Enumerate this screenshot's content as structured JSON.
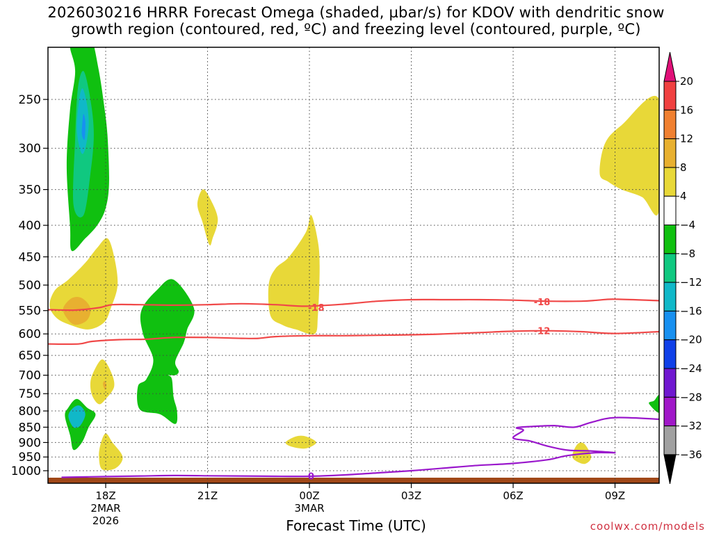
{
  "title_line1": "2026030216 HRRR Forecast Omega (shaded, µbar/s) for KDOV with dendritic snow",
  "title_line2": "growth region (contoured, red, ºC) and freezing level (contoured, purple, ºC)",
  "credit": "coolwx.com/models",
  "chart_data": {
    "type": "heatmap",
    "xlabel": "Forecast Time (UTC)",
    "ylabel": "",
    "y_axis": {
      "scale": "pressure",
      "reversed": true,
      "range": [
        1050,
        200
      ],
      "ticks": [
        250,
        300,
        350,
        400,
        450,
        500,
        550,
        600,
        650,
        700,
        750,
        800,
        850,
        900,
        950,
        1000
      ]
    },
    "x_axis": {
      "range_hours": [
        -1.7,
        16.3
      ],
      "ticks": [
        {
          "hour": 0,
          "label": "18Z",
          "sub1": "2MAR",
          "sub2": "2026"
        },
        {
          "hour": 3,
          "label": "21Z",
          "sub1": "",
          "sub2": ""
        },
        {
          "hour": 6,
          "label": "00Z",
          "sub1": "3MAR",
          "sub2": ""
        },
        {
          "hour": 9,
          "label": "03Z",
          "sub1": "",
          "sub2": ""
        },
        {
          "hour": 12,
          "label": "06Z",
          "sub1": "",
          "sub2": ""
        },
        {
          "hour": 15,
          "label": "09Z",
          "sub1": "",
          "sub2": ""
        }
      ]
    },
    "grid": true,
    "colorbar": {
      "levels": [
        20,
        16,
        12,
        8,
        4,
        -4,
        -8,
        -12,
        -16,
        -20,
        -24,
        -28,
        -32,
        -36
      ],
      "colors": [
        "#f04040",
        "#f08030",
        "#e8b030",
        "#e8d838",
        "#ffffff",
        "#10c010",
        "#10c880",
        "#10b8c8",
        "#1890f0",
        "#1040e8",
        "#7018d0",
        "#a018c8",
        "#a0a0a0"
      ],
      "top_color": "#e01078",
      "bottom_color": "#000000"
    },
    "shaded_regions": [
      {
        "value_range": [
          -12,
          -8
        ],
        "color": "#10c010",
        "points": [
          [
            -1.0,
            440
          ],
          [
            -1.05,
            400
          ],
          [
            -1.15,
            320
          ],
          [
            -1.05,
            260
          ],
          [
            -0.9,
            225
          ],
          [
            -1.05,
            205
          ],
          [
            -0.9,
            195
          ],
          [
            -0.75,
            190
          ],
          [
            -0.45,
            195
          ],
          [
            -0.2,
            225
          ],
          [
            -0.05,
            255
          ],
          [
            0.05,
            285
          ],
          [
            0.1,
            340
          ],
          [
            0.0,
            375
          ],
          [
            -0.25,
            400
          ],
          [
            -0.6,
            420
          ]
        ]
      },
      {
        "value_range": [
          -16,
          -12
        ],
        "color": "#10c880",
        "points": [
          [
            -0.95,
            370
          ],
          [
            -0.9,
            290
          ],
          [
            -0.82,
            240
          ],
          [
            -0.65,
            225
          ],
          [
            -0.45,
            250
          ],
          [
            -0.35,
            285
          ],
          [
            -0.45,
            330
          ],
          [
            -0.65,
            385
          ]
        ]
      },
      {
        "value_range": [
          -20,
          -16
        ],
        "color": "#10b8c8",
        "points": [
          [
            -0.85,
            280
          ],
          [
            -0.78,
            250
          ],
          [
            -0.68,
            240
          ],
          [
            -0.55,
            255
          ],
          [
            -0.5,
            275
          ],
          [
            -0.6,
            300
          ],
          [
            -0.72,
            305
          ]
        ]
      },
      {
        "value_range": [
          -24,
          -20
        ],
        "color": "#1890f0",
        "points": [
          [
            -0.7,
            285
          ],
          [
            -0.68,
            270
          ],
          [
            -0.65,
            264
          ],
          [
            -0.6,
            272
          ],
          [
            -0.62,
            290
          ]
        ]
      },
      {
        "value_range": [
          4,
          8
        ],
        "color": "#e8d838",
        "points": [
          [
            -1.65,
            540
          ],
          [
            -1.5,
            510
          ],
          [
            -1.1,
            490
          ],
          [
            -0.6,
            460
          ],
          [
            -0.25,
            435
          ],
          [
            0.05,
            420
          ],
          [
            0.25,
            450
          ],
          [
            0.35,
            500
          ],
          [
            0.15,
            545
          ],
          [
            -0.05,
            575
          ],
          [
            -0.5,
            590
          ],
          [
            -1.05,
            580
          ],
          [
            -1.45,
            565
          ]
        ]
      },
      {
        "value_range": [
          8,
          12
        ],
        "color": "#e8b030",
        "points": [
          [
            -1.25,
            545
          ],
          [
            -1.0,
            525
          ],
          [
            -0.7,
            525
          ],
          [
            -0.45,
            545
          ],
          [
            -0.55,
            570
          ],
          [
            -0.9,
            580
          ],
          [
            -1.15,
            565
          ]
        ]
      },
      {
        "value_range": [
          4,
          8
        ],
        "color": "#e8d838",
        "points": [
          [
            -0.45,
            720
          ],
          [
            -0.35,
            690
          ],
          [
            -0.1,
            660
          ],
          [
            0.15,
            690
          ],
          [
            0.25,
            730
          ],
          [
            0.0,
            765
          ],
          [
            -0.2,
            780
          ],
          [
            -0.4,
            755
          ]
        ]
      },
      {
        "value_range": [
          8,
          12
        ],
        "color": "#e8b030",
        "points": [
          [
            -0.08,
            725
          ],
          [
            -0.04,
            715
          ],
          [
            0.02,
            725
          ],
          [
            -0.01,
            740
          ]
        ]
      },
      {
        "value_range": [
          4,
          8
        ],
        "color": "#e8d838",
        "points": [
          [
            -0.2,
            950
          ],
          [
            -0.15,
            905
          ],
          [
            0.0,
            870
          ],
          [
            0.2,
            900
          ],
          [
            0.5,
            950
          ],
          [
            0.3,
            990
          ],
          [
            -0.1,
            995
          ]
        ]
      },
      {
        "value_range": [
          4,
          8
        ],
        "color": "#e8d838",
        "points": [
          [
            2.7,
            370
          ],
          [
            2.85,
            350
          ],
          [
            3.05,
            360
          ],
          [
            3.3,
            390
          ],
          [
            3.15,
            420
          ],
          [
            3.05,
            430
          ],
          [
            2.85,
            395
          ]
        ]
      },
      {
        "value_range": [
          4,
          8
        ],
        "color": "#e8d838",
        "points": [
          [
            4.8,
            500
          ],
          [
            5.0,
            470
          ],
          [
            5.4,
            450
          ],
          [
            5.9,
            410
          ],
          [
            6.05,
            385
          ],
          [
            6.25,
            425
          ],
          [
            6.3,
            470
          ],
          [
            6.25,
            560
          ],
          [
            6.15,
            600
          ],
          [
            5.6,
            590
          ],
          [
            5.2,
            580
          ],
          [
            4.85,
            560
          ]
        ]
      },
      {
        "value_range": [
          4,
          8
        ],
        "color": "#e8d838",
        "points": [
          [
            5.3,
            900
          ],
          [
            5.6,
            880
          ],
          [
            5.9,
            880
          ],
          [
            6.2,
            900
          ],
          [
            5.9,
            920
          ],
          [
            5.5,
            915
          ]
        ]
      },
      {
        "value_range": [
          -12,
          -8
        ],
        "color": "#10c010",
        "points": [
          [
            1.05,
            550
          ],
          [
            1.5,
            510
          ],
          [
            2.0,
            490
          ],
          [
            2.6,
            545
          ],
          [
            2.4,
            590
          ],
          [
            2.3,
            620
          ],
          [
            2.05,
            665
          ],
          [
            2.15,
            690
          ],
          [
            2.05,
            700
          ],
          [
            1.85,
            700
          ],
          [
            1.95,
            710
          ],
          [
            2.0,
            760
          ],
          [
            2.1,
            800
          ],
          [
            2.05,
            840
          ],
          [
            1.6,
            810
          ],
          [
            1.0,
            795
          ],
          [
            0.95,
            730
          ],
          [
            1.2,
            710
          ],
          [
            1.4,
            660
          ],
          [
            1.1,
            600
          ]
        ]
      },
      {
        "value_range": [
          -12,
          -8
        ],
        "color": "#10c010",
        "points": [
          [
            -1.2,
            815
          ],
          [
            -1.1,
            790
          ],
          [
            -0.85,
            765
          ],
          [
            -0.55,
            790
          ],
          [
            -0.3,
            810
          ],
          [
            -0.5,
            850
          ],
          [
            -0.7,
            900
          ],
          [
            -0.95,
            925
          ],
          [
            -1.05,
            875
          ]
        ]
      },
      {
        "value_range": [
          -16,
          -12
        ],
        "color": "#10b8c8",
        "points": [
          [
            -1.1,
            815
          ],
          [
            -0.95,
            790
          ],
          [
            -0.75,
            785
          ],
          [
            -0.6,
            810
          ],
          [
            -0.75,
            845
          ],
          [
            -0.95,
            850
          ]
        ]
      },
      {
        "value_range": [
          4,
          8
        ],
        "color": "#e8d838",
        "points": [
          [
            14.55,
            330
          ],
          [
            14.7,
            295
          ],
          [
            15.2,
            275
          ],
          [
            16.3,
            250
          ],
          [
            16.3,
            378
          ],
          [
            15.8,
            360
          ],
          [
            15.2,
            350
          ],
          [
            14.8,
            340
          ]
        ]
      },
      {
        "value_range": [
          4,
          8
        ],
        "color": "#e8d838",
        "points": [
          [
            13.75,
            940
          ],
          [
            13.9,
            905
          ],
          [
            14.1,
            905
          ],
          [
            14.3,
            950
          ],
          [
            14.1,
            975
          ],
          [
            13.8,
            960
          ]
        ]
      },
      {
        "value_range": [
          -12,
          -8
        ],
        "color": "#10c010",
        "points": [
          [
            16.3,
            755
          ],
          [
            16.15,
            770
          ],
          [
            16.0,
            778
          ],
          [
            16.3,
            805
          ]
        ]
      }
    ],
    "contours": [
      {
        "level": -18,
        "label": "-18",
        "color": "#f04848",
        "label_positions": [
          [
            6.2,
            543
          ],
          [
            12.85,
            532
          ]
        ],
        "points": [
          [
            -1.7,
            548
          ],
          [
            -0.9,
            549
          ],
          [
            -0.2,
            544
          ],
          [
            0.2,
            538
          ],
          [
            1.0,
            538
          ],
          [
            2.0,
            539
          ],
          [
            3.0,
            538
          ],
          [
            4.0,
            536
          ],
          [
            5.0,
            538
          ],
          [
            5.9,
            541
          ],
          [
            7.0,
            537
          ],
          [
            8.0,
            531
          ],
          [
            9.0,
            528
          ],
          [
            10.0,
            528
          ],
          [
            11.0,
            528
          ],
          [
            12.0,
            529
          ],
          [
            13.0,
            531
          ],
          [
            14.0,
            531
          ],
          [
            14.5,
            529
          ],
          [
            15.0,
            527
          ],
          [
            16.3,
            530
          ]
        ]
      },
      {
        "level": -12,
        "label": "-12",
        "color": "#f04848",
        "label_positions": [
          [
            12.85,
            593
          ]
        ],
        "points": [
          [
            -1.7,
            623
          ],
          [
            -0.8,
            623
          ],
          [
            -0.4,
            617
          ],
          [
            0.4,
            613
          ],
          [
            1.2,
            612
          ],
          [
            2.0,
            608
          ],
          [
            3.0,
            608
          ],
          [
            4.0,
            610
          ],
          [
            4.5,
            610
          ],
          [
            5.0,
            606
          ],
          [
            6.0,
            604
          ],
          [
            7.0,
            604
          ],
          [
            8.0,
            603
          ],
          [
            9.0,
            602
          ],
          [
            10.0,
            600
          ],
          [
            11.0,
            597
          ],
          [
            12.0,
            594
          ],
          [
            13.0,
            593
          ],
          [
            14.0,
            595
          ],
          [
            15.0,
            599
          ],
          [
            16.3,
            595
          ]
        ]
      },
      {
        "level": 0,
        "label": "0",
        "color": "#9a18cc",
        "label_positions": [
          [
            6.05,
            1020
          ]
        ],
        "points": [
          [
            -1.3,
            1025
          ],
          [
            0.0,
            1022
          ],
          [
            1.0,
            1020
          ],
          [
            2.0,
            1018
          ],
          [
            3.0,
            1019
          ],
          [
            4.0,
            1020
          ],
          [
            5.0,
            1021
          ],
          [
            6.0,
            1021
          ],
          [
            7.0,
            1016
          ],
          [
            8.0,
            1008
          ],
          [
            9.0,
            1000
          ],
          [
            10.0,
            990
          ],
          [
            11.0,
            980
          ],
          [
            12.0,
            973
          ],
          [
            13.0,
            960
          ],
          [
            13.6,
            945
          ],
          [
            14.4,
            935
          ],
          [
            15.0,
            935
          ],
          [
            14.3,
            929
          ],
          [
            13.6,
            926
          ],
          [
            13.0,
            912
          ],
          [
            12.5,
            895
          ],
          [
            12.0,
            885
          ],
          [
            12.3,
            860
          ],
          [
            12.1,
            852
          ],
          [
            12.5,
            848
          ],
          [
            13.2,
            845
          ],
          [
            13.8,
            850
          ],
          [
            14.3,
            835
          ],
          [
            15.0,
            820
          ],
          [
            16.3,
            825
          ]
        ]
      }
    ],
    "surface_band_color": "#a04818"
  }
}
